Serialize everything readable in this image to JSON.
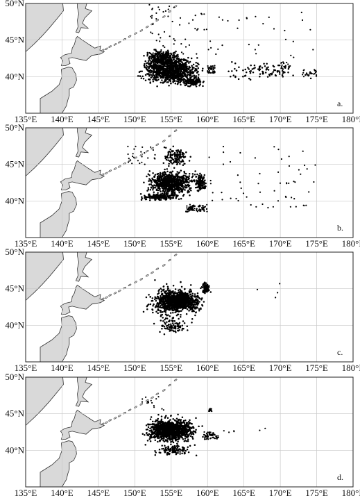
{
  "figure": {
    "lon_ticks": [
      "135°E",
      "140°E",
      "145°E",
      "150°E",
      "155°E",
      "160°E",
      "165°E",
      "170°E",
      "175°E",
      "180°E"
    ],
    "lat_ticks": [
      "50°N",
      "45°N",
      "40°N"
    ],
    "lon_range": [
      135,
      180
    ],
    "lat_range": [
      35,
      50
    ],
    "grid": true,
    "land_color": "#d9d9d9",
    "point_color": "#000000"
  },
  "panels": [
    {
      "label": "a.",
      "clusters": [
        {
          "lon": [
            150,
            160
          ],
          "lat": [
            38.5,
            43
          ],
          "n": 900
        },
        {
          "lon": [
            151,
            157
          ],
          "lat": [
            41,
            44
          ],
          "n": 350
        },
        {
          "lon": [
            156,
            160
          ],
          "lat": [
            38.5,
            40
          ],
          "n": 150
        },
        {
          "lon": [
            160,
            161
          ],
          "lat": [
            40.5,
            41.5
          ],
          "n": 40
        },
        {
          "lon": [
            170,
            171.5
          ],
          "lat": [
            41,
            42
          ],
          "n": 20
        },
        {
          "lon": [
            173,
            175
          ],
          "lat": [
            40,
            41
          ],
          "n": 25
        },
        {
          "lon": [
            152,
            160
          ],
          "lat": [
            43,
            50
          ],
          "n": 55
        },
        {
          "lon": [
            160,
            175
          ],
          "lat": [
            39,
            42.5
          ],
          "n": 90
        },
        {
          "lon": [
            160,
            175
          ],
          "lat": [
            42.5,
            49
          ],
          "n": 30
        }
      ]
    },
    {
      "label": "b.",
      "clusters": [
        {
          "lon": [
            151,
            159
          ],
          "lat": [
            40.5,
            44.5
          ],
          "n": 750
        },
        {
          "lon": [
            150,
            157
          ],
          "lat": [
            40,
            41.2
          ],
          "n": 200
        },
        {
          "lon": [
            157,
            160
          ],
          "lat": [
            38.5,
            39.5
          ],
          "n": 80
        },
        {
          "lon": [
            153,
            158
          ],
          "lat": [
            44,
            48
          ],
          "n": 120
        },
        {
          "lon": [
            158,
            160
          ],
          "lat": [
            41,
            44
          ],
          "n": 120
        },
        {
          "lon": [
            149,
            153
          ],
          "lat": [
            45,
            47.5
          ],
          "n": 25
        },
        {
          "lon": [
            160,
            175
          ],
          "lat": [
            39,
            47.5
          ],
          "n": 60
        }
      ]
    },
    {
      "label": "c.",
      "clusters": [
        {
          "lon": [
            152,
            160
          ],
          "lat": [
            41.5,
            45
          ],
          "n": 950
        },
        {
          "lon": [
            150.5,
            160
          ],
          "lat": [
            40,
            46.5
          ],
          "n": 250
        },
        {
          "lon": [
            152,
            158
          ],
          "lat": [
            38.5,
            41.5
          ],
          "n": 90
        },
        {
          "lon": [
            159,
            160.5
          ],
          "lat": [
            44,
            46
          ],
          "n": 90
        },
        {
          "lon": [
            165,
            170
          ],
          "lat": [
            43,
            46
          ],
          "n": 4
        }
      ]
    },
    {
      "label": "d.",
      "clusters": [
        {
          "lon": [
            151,
            159
          ],
          "lat": [
            41,
            44.5
          ],
          "n": 900
        },
        {
          "lon": [
            150,
            160
          ],
          "lat": [
            40,
            45.5
          ],
          "n": 250
        },
        {
          "lon": [
            152,
            159
          ],
          "lat": [
            39,
            41
          ],
          "n": 100
        },
        {
          "lon": [
            159.5,
            161.5
          ],
          "lat": [
            41.5,
            42.5
          ],
          "n": 60
        },
        {
          "lon": [
            160,
            160.6
          ],
          "lat": [
            45.2,
            45.7
          ],
          "n": 15
        },
        {
          "lon": [
            150.5,
            154
          ],
          "lat": [
            45.5,
            47.5
          ],
          "n": 15
        },
        {
          "lon": [
            162,
            170
          ],
          "lat": [
            42,
            43
          ],
          "n": 6
        }
      ]
    }
  ]
}
